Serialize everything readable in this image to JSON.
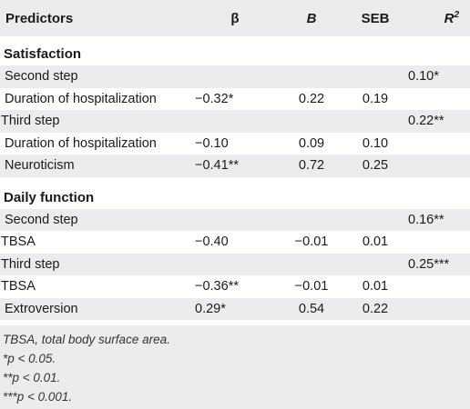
{
  "header": {
    "predictors": "Predictors",
    "beta": "β",
    "B": "B",
    "SEB": "SEB",
    "R2": "R",
    "R2_sup": "2"
  },
  "sections": [
    {
      "title": "Satisfaction",
      "rows": [
        {
          "label": "Second step",
          "beta": "",
          "B": "",
          "SEB": "",
          "R2": "0.10*"
        },
        {
          "label": "Duration of hospitalization",
          "beta": "−0.32*",
          "B": "0.22",
          "SEB": "0.19",
          "R2": ""
        },
        {
          "label": "Third step",
          "beta": "",
          "B": "",
          "SEB": "",
          "R2": "0.22**"
        },
        {
          "label": "Duration of hospitalization",
          "beta": "−0.10",
          "B": "0.09",
          "SEB": "0.10",
          "R2": ""
        },
        {
          "label": "Neuroticism",
          "beta": "−0.41**",
          "B": "0.72",
          "SEB": "0.25",
          "R2": ""
        }
      ]
    },
    {
      "title": "Daily function",
      "rows": [
        {
          "label": "Second step",
          "beta": "",
          "B": "",
          "SEB": "",
          "R2": "0.16**"
        },
        {
          "label": "TBSA",
          "beta": "−0.40",
          "B": "−0.01",
          "SEB": "0.01",
          "R2": ""
        },
        {
          "label": "Third step",
          "beta": "",
          "B": "",
          "SEB": "",
          "R2": "0.25***"
        },
        {
          "label": "TBSA",
          "beta": "−0.36**",
          "B": "−0.01",
          "SEB": "0.01",
          "R2": ""
        },
        {
          "label": "Extroversion",
          "beta": "0.29*",
          "B": "0.54",
          "SEB": "0.22",
          "R2": ""
        }
      ]
    }
  ],
  "notes": [
    "TBSA, total body surface area.",
    "*p < 0.05.",
    "**p < 0.01.",
    "***p < 0.001."
  ]
}
